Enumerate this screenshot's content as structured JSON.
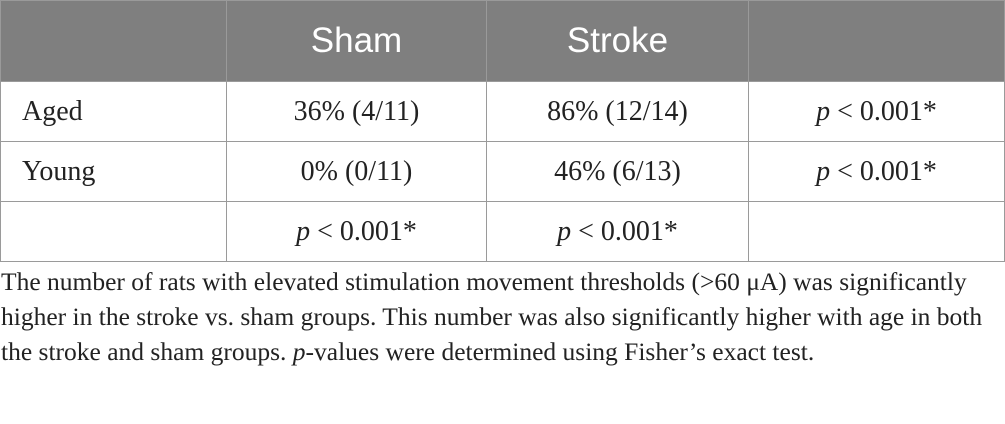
{
  "table": {
    "headers": [
      "",
      "Sham",
      "Stroke",
      ""
    ],
    "rows": [
      {
        "label": "Aged",
        "sham": "36% (4/11)",
        "stroke": "86% (12/14)",
        "p_italic": "p",
        "p_rest": " < 0.001*"
      },
      {
        "label": "Young",
        "sham": "0% (0/11)",
        "stroke": "46% (6/13)",
        "p_italic": "p",
        "p_rest": " < 0.001*"
      },
      {
        "label": "",
        "sham_p_italic": "p",
        "sham_p_rest": " < 0.001*",
        "stroke_p_italic": "p",
        "stroke_p_rest": " < 0.001*",
        "p_value": ""
      }
    ]
  },
  "footnote": {
    "line1": "The number of rats with elevated stimulation movement thresholds (>60 μA) was significantly higher in the stroke vs. sham groups. This number was also significantly higher with age in both the stroke and sham groups. ",
    "p_italic": "p",
    "line2": "-values were determined using Fisher’s exact test."
  }
}
